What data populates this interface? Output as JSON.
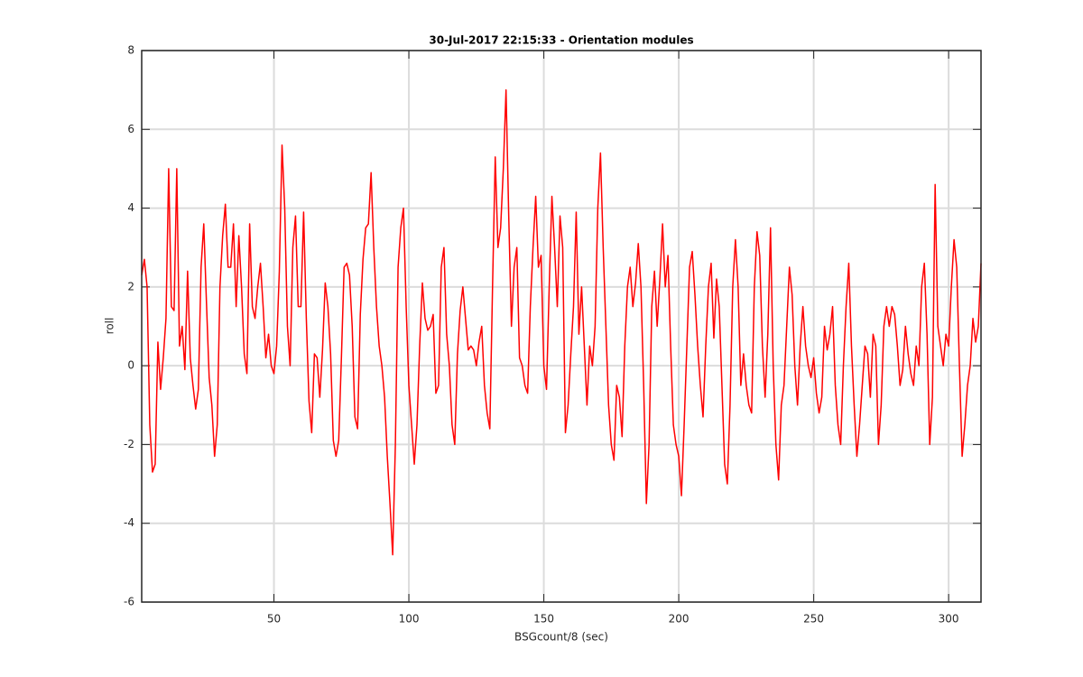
{
  "chart_data": {
    "type": "line",
    "title": "30-Jul-2017 22:15:33 - Orientation modules",
    "x_label": "BSGcount/8 (sec)",
    "y_label": "roll",
    "xlim": [
      1,
      312
    ],
    "ylim": [
      -6,
      8
    ],
    "xticks": [
      50,
      100,
      150,
      200,
      250,
      300
    ],
    "yticks": [
      -6,
      -4,
      -2,
      0,
      2,
      4,
      6,
      8
    ],
    "grid": true,
    "x": [
      1,
      2,
      3,
      4,
      5,
      6,
      7,
      8,
      9,
      10,
      11,
      12,
      13,
      14,
      15,
      16,
      17,
      18,
      19,
      20,
      21,
      22,
      23,
      24,
      25,
      26,
      27,
      28,
      29,
      30,
      31,
      32,
      33,
      34,
      35,
      36,
      37,
      38,
      39,
      40,
      41,
      42,
      43,
      44,
      45,
      46,
      47,
      48,
      49,
      50,
      51,
      52,
      53,
      54,
      55,
      56,
      57,
      58,
      59,
      60,
      61,
      62,
      63,
      64,
      65,
      66,
      67,
      68,
      69,
      70,
      71,
      72,
      73,
      74,
      75,
      76,
      77,
      78,
      79,
      80,
      81,
      82,
      83,
      84,
      85,
      86,
      87,
      88,
      89,
      90,
      91,
      92,
      93,
      94,
      95,
      96,
      97,
      98,
      99,
      100,
      101,
      102,
      103,
      104,
      105,
      106,
      107,
      108,
      109,
      110,
      111,
      112,
      113,
      114,
      115,
      116,
      117,
      118,
      119,
      120,
      121,
      122,
      123,
      124,
      125,
      126,
      127,
      128,
      129,
      130,
      131,
      132,
      133,
      134,
      135,
      136,
      137,
      138,
      139,
      140,
      141,
      142,
      143,
      144,
      145,
      146,
      147,
      148,
      149,
      150,
      151,
      152,
      153,
      154,
      155,
      156,
      157,
      158,
      159,
      160,
      161,
      162,
      163,
      164,
      165,
      166,
      167,
      168,
      169,
      170,
      171,
      172,
      173,
      174,
      175,
      176,
      177,
      178,
      179,
      180,
      181,
      182,
      183,
      184,
      185,
      186,
      187,
      188,
      189,
      190,
      191,
      192,
      193,
      194,
      195,
      196,
      197,
      198,
      199,
      200,
      201,
      202,
      203,
      204,
      205,
      206,
      207,
      208,
      209,
      210,
      211,
      212,
      213,
      214,
      215,
      216,
      217,
      218,
      219,
      220,
      221,
      222,
      223,
      224,
      225,
      226,
      227,
      228,
      229,
      230,
      231,
      232,
      233,
      234,
      235,
      236,
      237,
      238,
      239,
      240,
      241,
      242,
      243,
      244,
      245,
      246,
      247,
      248,
      249,
      250,
      251,
      252,
      253,
      254,
      255,
      256,
      257,
      258,
      259,
      260,
      261,
      262,
      263,
      264,
      265,
      266,
      267,
      268,
      269,
      270,
      271,
      272,
      273,
      274,
      275,
      276,
      277,
      278,
      279,
      280,
      281,
      282,
      283,
      284,
      285,
      286,
      287,
      288,
      289,
      290,
      291,
      292,
      293,
      294,
      295,
      296,
      297,
      298,
      299,
      300,
      301,
      302,
      303,
      304,
      305,
      306,
      307,
      308,
      309,
      310,
      311,
      312
    ],
    "series": [
      {
        "name": "roll",
        "color": "#ff0000",
        "values": [
          2.3,
          2.7,
          2.0,
          -1.5,
          -2.7,
          -2.5,
          0.6,
          -0.6,
          0.2,
          1.2,
          5.0,
          1.5,
          1.4,
          5.0,
          0.5,
          1.0,
          -0.1,
          2.4,
          0.2,
          -0.5,
          -1.1,
          -0.6,
          2.5,
          3.6,
          1.6,
          -0.3,
          -1.0,
          -2.3,
          -1.5,
          2.0,
          3.3,
          4.1,
          2.5,
          2.5,
          3.6,
          1.5,
          3.3,
          2.0,
          0.3,
          -0.2,
          3.6,
          1.5,
          1.2,
          2.0,
          2.6,
          1.5,
          0.2,
          0.8,
          0.0,
          -0.2,
          0.5,
          2.4,
          5.6,
          4.0,
          1.0,
          0.0,
          3.0,
          3.8,
          1.5,
          1.5,
          3.9,
          1.2,
          -0.9,
          -1.7,
          0.3,
          0.2,
          -0.8,
          0.4,
          2.1,
          1.5,
          0.3,
          -1.9,
          -2.3,
          -1.9,
          0.2,
          2.5,
          2.6,
          2.3,
          1.0,
          -1.3,
          -1.6,
          1.3,
          2.7,
          3.5,
          3.6,
          4.9,
          3.0,
          1.5,
          0.5,
          0.0,
          -0.8,
          -2.3,
          -3.5,
          -4.8,
          -2.0,
          2.5,
          3.5,
          4.0,
          1.5,
          -0.5,
          -1.5,
          -2.5,
          -1.5,
          0.5,
          2.1,
          1.2,
          0.9,
          1.0,
          1.3,
          -0.7,
          -0.5,
          2.5,
          3.0,
          0.8,
          0.0,
          -1.5,
          -2.0,
          0.3,
          1.4,
          2.0,
          1.2,
          0.4,
          0.5,
          0.4,
          0.0,
          0.6,
          1.0,
          -0.5,
          -1.2,
          -1.6,
          2.0,
          5.3,
          3.0,
          3.5,
          5.0,
          7.0,
          3.8,
          1.0,
          2.5,
          3.0,
          0.2,
          0.0,
          -0.5,
          -0.7,
          1.5,
          3.0,
          4.3,
          2.5,
          2.8,
          0.0,
          -0.6,
          2.0,
          4.3,
          3.0,
          1.5,
          3.8,
          3.0,
          -1.7,
          -1.0,
          0.3,
          1.5,
          3.9,
          0.8,
          2.0,
          0.5,
          -1.0,
          0.5,
          0.0,
          1.0,
          4.0,
          5.4,
          3.0,
          1.0,
          -1.0,
          -2.0,
          -2.4,
          -0.5,
          -0.8,
          -1.8,
          0.5,
          2.0,
          2.5,
          1.5,
          2.1,
          3.1,
          2.0,
          -0.5,
          -3.5,
          -2.0,
          1.5,
          2.4,
          1.0,
          2.2,
          3.6,
          2.0,
          2.8,
          0.5,
          -1.5,
          -2.0,
          -2.3,
          -3.3,
          -1.5,
          0.5,
          2.5,
          2.9,
          1.8,
          0.5,
          -0.5,
          -1.3,
          0.5,
          2.0,
          2.6,
          0.7,
          2.2,
          1.5,
          -0.5,
          -2.5,
          -3.0,
          -1.0,
          2.0,
          3.2,
          2.0,
          -0.5,
          0.3,
          -0.5,
          -1.0,
          -1.2,
          2.0,
          3.4,
          2.8,
          0.5,
          -0.8,
          0.8,
          3.5,
          0.0,
          -2.0,
          -2.9,
          -1.0,
          -0.5,
          1.0,
          2.5,
          1.8,
          0.0,
          -1.0,
          0.5,
          1.5,
          0.5,
          0.0,
          -0.3,
          0.2,
          -0.7,
          -1.2,
          -0.8,
          1.0,
          0.4,
          0.8,
          1.5,
          -0.5,
          -1.5,
          -2.0,
          0.0,
          1.5,
          2.6,
          0.5,
          -1.0,
          -2.3,
          -1.5,
          -0.5,
          0.5,
          0.3,
          -0.8,
          0.8,
          0.5,
          -2.0,
          -1.0,
          1.0,
          1.5,
          1.0,
          1.5,
          1.3,
          0.5,
          -0.5,
          -0.1,
          1.0,
          0.3,
          -0.2,
          -0.5,
          0.5,
          0.0,
          2.0,
          2.6,
          0.8,
          -2.0,
          -0.8,
          4.6,
          1.0,
          0.5,
          0.0,
          0.8,
          0.5,
          2.0,
          3.2,
          2.5,
          0.0,
          -2.3,
          -1.5,
          -0.5,
          0.0,
          1.2,
          0.6,
          1.0,
          2.6
        ]
      }
    ]
  }
}
